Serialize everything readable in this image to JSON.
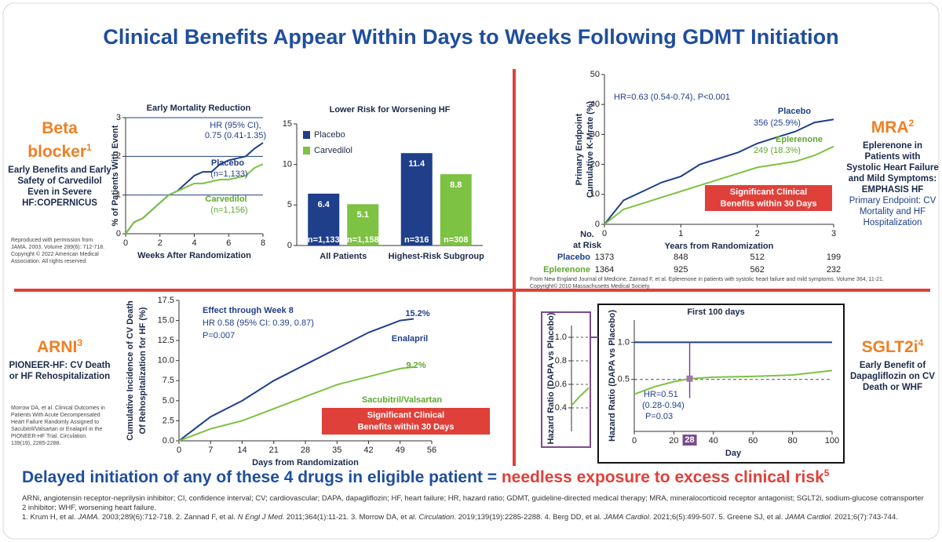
{
  "header": {
    "title": "Clinical Benefits Appear Within Days to Weeks Following GDMT Initiation"
  },
  "panels": {
    "beta": {
      "heading": "Beta blocker",
      "sup": "1",
      "description": "Early Benefits and Early Safety of Carvedilol Even in Severe HF:COPERNICUS",
      "source": "Reproduced with permission from JAMA. 2003. Volume 289(6): 712-718. Copyright © 2022 American Medical Association. All rights reserved"
    },
    "mra": {
      "heading": "MRA",
      "sup": "2",
      "description": "Eplerenone in Patients with Systolic Heart Failure and Mild Symptoms: EMPHASIS HF",
      "endpoint": "Primary Endpoint: CV Mortality and HF Hospitalization",
      "source": "From New England Journal of Medicine, Zannad F, et al. Eplerenone in patients with systolic heart failure and mild symptoms. Volume 364, 11-21, Copyright© 2010 Massachusetts Medical Society."
    },
    "arni": {
      "heading": "ARNI",
      "sup": "3",
      "description": "PIONEER-HF: CV Death or HF Rehospitalization",
      "source": "Morrow DA, et al. Clinical Outcomes in Patients With Acute Decompensated Heart Failure Randomly Assigned to Sacubitril/Valsartan or Enalapril in the PIONEER-HF Trial. Circulation. 139(19), 2285-2288."
    },
    "sglt2": {
      "heading": "SGLT2i",
      "sup": "4",
      "description": "Early Benefit of Dapagliflozin on CV Death or WHF"
    }
  },
  "conclusion": {
    "lead": "Delayed initiation of any of these 4 drugs in eligible patient = ",
    "emphasis": "needless exposure to excess clinical risk",
    "sup": "5"
  },
  "footnotes": {
    "abbreviations": "ARNi, angiotensin receptor-neprilysin inhibitor; CI, confidence interval; CV; cardiovascular; DAPA, dapagliflozin; HF, heart failure; HR, hazard ratio; GDMT, guideline-directed medical therapy; MRA, mineralocorticoid receptor antagonist; SGLT2i, sodium-glucose cotransporter 2 inhibitor; WHF, worsening heart failure.",
    "references": [
      {
        "text": "1. Krum H, et al. "
      },
      {
        "text": "JAMA",
        "italic": true
      },
      {
        "text": ". 2003;289(6):712-718. 2. Zannad F, et al. "
      },
      {
        "text": "N Engl J Med",
        "italic": true
      },
      {
        "text": ". 2011;364(1):11-21. 3. Morrow DA, et al. "
      },
      {
        "text": "Circulation",
        "italic": true
      },
      {
        "text": ". 2019;139(19):2285-2288. 4. Berg DD, et al. "
      },
      {
        "text": "JAMA Cardiol",
        "italic": true
      },
      {
        "text": ". 2021;6(5):499-507. 5. Greene SJ, et al. "
      },
      {
        "text": "JAMA Cardiol",
        "italic": true
      },
      {
        "text": ". 2021;6(7):743-744."
      }
    ]
  },
  "chart_data": [
    {
      "type": "line",
      "title": "Early Mortality Reduction",
      "xlabel": "Weeks After Randomization",
      "ylabel": [
        "% of Patients With Event"
      ],
      "x": [
        0,
        0.5,
        1,
        1.5,
        2,
        2.5,
        3,
        3.5,
        4,
        4.5,
        5,
        5.5,
        6,
        6.5,
        7,
        7.5,
        8
      ],
      "xlim": [
        0,
        8
      ],
      "xticks": [
        0,
        2,
        4,
        6,
        8
      ],
      "ylim": [
        0,
        3
      ],
      "yticks": [
        0,
        1,
        2,
        3
      ],
      "grid": true,
      "series": [
        {
          "name": "Placebo",
          "color": "#1f3f8a",
          "values": [
            0,
            0.3,
            0.4,
            0.6,
            0.8,
            1.0,
            1.1,
            1.3,
            1.5,
            1.6,
            1.6,
            1.8,
            1.9,
            1.95,
            2.0,
            2.2,
            2.35
          ]
        },
        {
          "name": "Carvedilol",
          "color": "#7dc242",
          "values": [
            0,
            0.3,
            0.4,
            0.6,
            0.8,
            1.0,
            1.1,
            1.2,
            1.3,
            1.3,
            1.35,
            1.4,
            1.4,
            1.45,
            1.5,
            1.7,
            1.8
          ]
        }
      ],
      "annotations": [
        "HR (95% CI),",
        "0.75 (0.41-1.35)",
        "(n=1,133)",
        "(n=1,156)"
      ]
    },
    {
      "type": "bar",
      "title": "Lower Risk for Worsening HF",
      "categories": [
        "All Patients",
        "Highest-Risk Subgroup"
      ],
      "ylim": [
        0,
        15
      ],
      "yticks": [
        0,
        5,
        10,
        15
      ],
      "legend": "top-left",
      "series": [
        {
          "name": "Placebo",
          "color": "#1f3f8a",
          "values": [
            6.4,
            11.4
          ],
          "n_labels": [
            "n=1,133",
            "n=316"
          ]
        },
        {
          "name": "Carvedilol",
          "color": "#7dc242",
          "values": [
            5.1,
            8.8
          ],
          "n_labels": [
            "n=1,158",
            "n=308"
          ]
        }
      ]
    },
    {
      "type": "line",
      "xlabel": "Years from Randomization",
      "ylabel": [
        "Primary Endpoint",
        "Cumulative K-Mrate (%)"
      ],
      "x": [
        0,
        0.25,
        0.5,
        0.75,
        1,
        1.25,
        1.5,
        1.75,
        2,
        2.25,
        2.5,
        2.75,
        3
      ],
      "xlim": [
        0,
        3
      ],
      "xticks": [
        0,
        1,
        2,
        3
      ],
      "ylim": [
        0,
        50
      ],
      "yticks": [
        0,
        10,
        20,
        30,
        40,
        50
      ],
      "grid": false,
      "series": [
        {
          "name": "Placebo",
          "color": "#1f3f8a",
          "values": [
            0,
            8,
            11,
            14,
            16,
            20,
            22,
            24,
            27,
            29,
            31,
            34,
            35
          ]
        },
        {
          "name": "Eplerenone",
          "color": "#7dc242",
          "values": [
            0,
            5,
            7,
            9,
            11,
            13,
            15,
            17,
            19,
            20,
            21,
            23,
            26
          ]
        }
      ],
      "annotations": [
        "HR=0.63 (0.54-0.74), P<0.001",
        "356 (25.9%)",
        "249 (18.3%)"
      ],
      "callout": [
        "Significant Clinical",
        "Benefits within 30 Days"
      ],
      "risk_table": {
        "header": [
          "No.",
          "at Risk"
        ],
        "rows": [
          [
            1373,
            848,
            512,
            199
          ],
          [
            1364,
            925,
            562,
            232
          ]
        ]
      }
    },
    {
      "type": "line",
      "xlabel": "Days from Randomization",
      "ylabel": [
        "Cumulative Incidence of CV Death",
        "Of Rehospitalization for HF (%)"
      ],
      "x": [
        0,
        7,
        14,
        21,
        28,
        35,
        42,
        49,
        52
      ],
      "xlim": [
        0,
        56
      ],
      "xticks": [
        0,
        7,
        14,
        21,
        28,
        35,
        42,
        49,
        56
      ],
      "ylim": [
        0,
        17.5
      ],
      "yticks": [
        {
          "value": 0,
          "label": "0.0"
        },
        2.5,
        {
          "value": 5,
          "label": "5.0"
        },
        7.5,
        {
          "value": 10,
          "label": "10.0"
        },
        12.5,
        {
          "value": 15,
          "label": "15.0"
        },
        17.5
      ],
      "grid": false,
      "series": [
        {
          "name": "Enalapril",
          "color": "#1f3f8a",
          "values": [
            0,
            3,
            5,
            7.5,
            9.5,
            11.5,
            13.5,
            15,
            15.2
          ]
        },
        {
          "name": "Sacubitril/Valsartan",
          "color": "#7dc242",
          "values": [
            0,
            1.5,
            2.5,
            4,
            5.5,
            7,
            8,
            9,
            9.2
          ]
        }
      ],
      "annotations": [
        "Effect through Week 8",
        "HR 0.58 (95% CI: 0.39, 0.87)",
        "P=0.007",
        "15.2%",
        "9.2%"
      ],
      "callout": [
        "Significant Clinical",
        "Benefits within 30 Days"
      ]
    },
    {
      "type": "line",
      "title": "First 100 days",
      "xlabel": "Day",
      "ylabel": [
        "Hazard Ratio (DAPA vs Placebo)"
      ],
      "x": [
        0,
        10,
        20,
        28,
        40,
        60,
        80,
        100
      ],
      "xlim": [
        0,
        100
      ],
      "xticks": [
        0,
        20,
        40,
        60,
        80,
        100
      ],
      "ylim": [
        -0.2,
        1.3
      ],
      "yticks": [
        0.5,
        {
          "value": 1,
          "label": "1.0"
        }
      ],
      "grid": true,
      "highlight_x": 28,
      "series": [
        {
          "color": "#1f3f8a",
          "values": [
            1,
            1,
            1,
            1,
            1,
            1,
            1,
            1
          ]
        },
        {
          "color": "#7dc242",
          "values": [
            0.3,
            0.4,
            0.47,
            0.51,
            0.53,
            0.54,
            0.56,
            0.62
          ]
        }
      ],
      "annotations": [
        "HR=0.51",
        "(0.28-0.94)",
        "P=0.03"
      ]
    },
    {
      "type": "line",
      "ylabel": [
        "Hazard Ratio (DAPA vs Placebo)"
      ],
      "x": [
        0,
        1,
        2
      ],
      "xlim": [
        0,
        2
      ],
      "ylim": [
        0.2,
        1.1
      ],
      "yticks": [
        {
          "value": 1,
          "label": "1.0"
        },
        0.8,
        0.6,
        0.4
      ],
      "grid": true,
      "series": [
        {
          "color": "#7dc242",
          "values": [
            0.42,
            0.5,
            0.57
          ]
        }
      ]
    }
  ]
}
